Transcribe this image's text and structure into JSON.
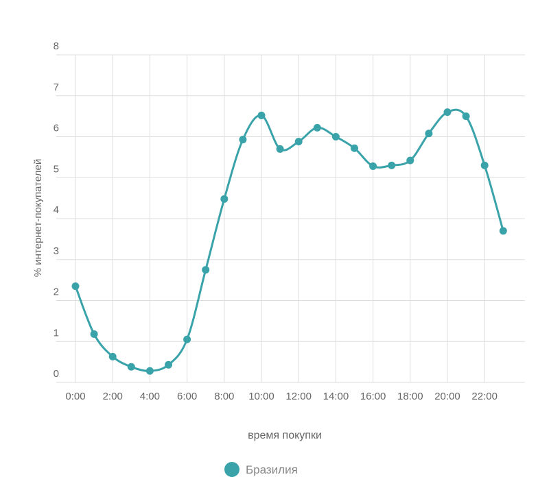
{
  "chart_data": {
    "type": "line",
    "title": "",
    "xlabel": "время покупки",
    "ylabel": "% интернет-покупателей",
    "ylim": [
      0,
      8
    ],
    "y_ticks": [
      "0",
      "1",
      "2",
      "3",
      "4",
      "5",
      "6",
      "7",
      "8"
    ],
    "x_tick_labels": [
      "0:00",
      "2:00",
      "4:00",
      "6:00",
      "8:00",
      "10:00",
      "12:00",
      "14:00",
      "16:00",
      "18:00",
      "20:00",
      "22:00"
    ],
    "grid": true,
    "legend_position": "bottom",
    "series": [
      {
        "name": "Бразилия",
        "color": "#3aa3aa",
        "x": [
          0,
          1,
          2,
          3,
          4,
          5,
          6,
          7,
          8,
          9,
          10,
          11,
          12,
          13,
          14,
          15,
          16,
          17,
          18,
          19,
          20,
          21,
          22,
          23
        ],
        "values": [
          2.35,
          1.18,
          0.63,
          0.38,
          0.28,
          0.43,
          1.05,
          2.75,
          4.48,
          5.93,
          6.52,
          5.7,
          5.88,
          6.22,
          6.0,
          5.72,
          5.28,
          5.3,
          5.42,
          6.08,
          6.6,
          6.5,
          5.3,
          3.7
        ]
      }
    ]
  },
  "colors": {
    "background": "#ffffff",
    "grid": "#dddddd",
    "text": "#666666",
    "line": "#3aa3aa"
  }
}
